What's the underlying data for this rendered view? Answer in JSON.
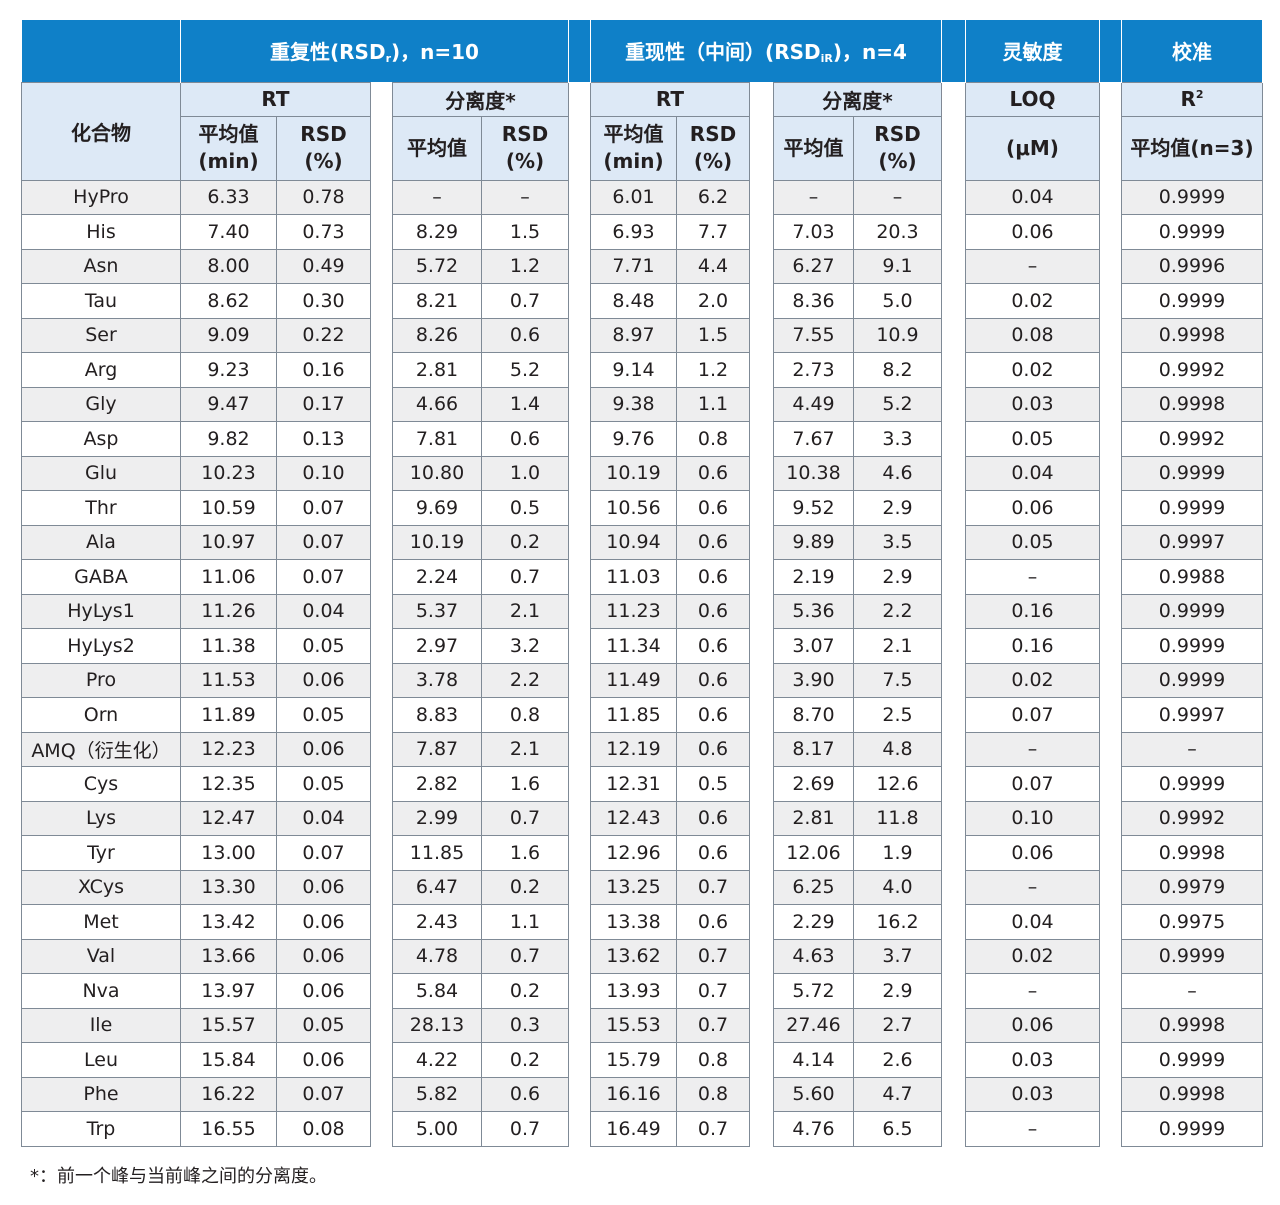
{
  "header": {
    "repeat": "重复性(RSDr)，n=10",
    "repeat_main": "重复性(RSD",
    "repeat_sub": "r",
    "repeat_tail": ")，n=10",
    "reprod_main": "重现性（中间）(RSD",
    "reprod_sub": "iR",
    "reprod_tail": ")，n=4",
    "sensitivity": "灵敏度",
    "calibration": "校准",
    "compound": "化合物",
    "rt": "RT",
    "resolution": "分离度*",
    "loq": "LOQ",
    "r2_main": "R",
    "r2_sup": "2",
    "mean_min_1": "平均值",
    "mean_min_2": "(min)",
    "rsd_1": "RSD",
    "rsd_2": "(%)",
    "mean": "平均值",
    "loq_unit": "(μM)",
    "mean_n3": "平均值(n=3)"
  },
  "rows": [
    [
      "HyPro",
      "6.33",
      "0.78",
      "–",
      "–",
      "6.01",
      "6.2",
      "–",
      "–",
      "0.04",
      "0.9999"
    ],
    [
      "His",
      "7.40",
      "0.73",
      "8.29",
      "1.5",
      "6.93",
      "7.7",
      "7.03",
      "20.3",
      "0.06",
      "0.9999"
    ],
    [
      "Asn",
      "8.00",
      "0.49",
      "5.72",
      "1.2",
      "7.71",
      "4.4",
      "6.27",
      "9.1",
      "–",
      "0.9996"
    ],
    [
      "Tau",
      "8.62",
      "0.30",
      "8.21",
      "0.7",
      "8.48",
      "2.0",
      "8.36",
      "5.0",
      "0.02",
      "0.9999"
    ],
    [
      "Ser",
      "9.09",
      "0.22",
      "8.26",
      "0.6",
      "8.97",
      "1.5",
      "7.55",
      "10.9",
      "0.08",
      "0.9998"
    ],
    [
      "Arg",
      "9.23",
      "0.16",
      "2.81",
      "5.2",
      "9.14",
      "1.2",
      "2.73",
      "8.2",
      "0.02",
      "0.9992"
    ],
    [
      "Gly",
      "9.47",
      "0.17",
      "4.66",
      "1.4",
      "9.38",
      "1.1",
      "4.49",
      "5.2",
      "0.03",
      "0.9998"
    ],
    [
      "Asp",
      "9.82",
      "0.13",
      "7.81",
      "0.6",
      "9.76",
      "0.8",
      "7.67",
      "3.3",
      "0.05",
      "0.9992"
    ],
    [
      "Glu",
      "10.23",
      "0.10",
      "10.80",
      "1.0",
      "10.19",
      "0.6",
      "10.38",
      "4.6",
      "0.04",
      "0.9999"
    ],
    [
      "Thr",
      "10.59",
      "0.07",
      "9.69",
      "0.5",
      "10.56",
      "0.6",
      "9.52",
      "2.9",
      "0.06",
      "0.9999"
    ],
    [
      "Ala",
      "10.97",
      "0.07",
      "10.19",
      "0.2",
      "10.94",
      "0.6",
      "9.89",
      "3.5",
      "0.05",
      "0.9997"
    ],
    [
      "GABA",
      "11.06",
      "0.07",
      "2.24",
      "0.7",
      "11.03",
      "0.6",
      "2.19",
      "2.9",
      "–",
      "0.9988"
    ],
    [
      "HyLys1",
      "11.26",
      "0.04",
      "5.37",
      "2.1",
      "11.23",
      "0.6",
      "5.36",
      "2.2",
      "0.16",
      "0.9999"
    ],
    [
      "HyLys2",
      "11.38",
      "0.05",
      "2.97",
      "3.2",
      "11.34",
      "0.6",
      "3.07",
      "2.1",
      "0.16",
      "0.9999"
    ],
    [
      "Pro",
      "11.53",
      "0.06",
      "3.78",
      "2.2",
      "11.49",
      "0.6",
      "3.90",
      "7.5",
      "0.02",
      "0.9999"
    ],
    [
      "Orn",
      "11.89",
      "0.05",
      "8.83",
      "0.8",
      "11.85",
      "0.6",
      "8.70",
      "2.5",
      "0.07",
      "0.9997"
    ],
    [
      "AMQ（衍生化）",
      "12.23",
      "0.06",
      "7.87",
      "2.1",
      "12.19",
      "0.6",
      "8.17",
      "4.8",
      "–",
      "–"
    ],
    [
      "Cys",
      "12.35",
      "0.05",
      "2.82",
      "1.6",
      "12.31",
      "0.5",
      "2.69",
      "12.6",
      "0.07",
      "0.9999"
    ],
    [
      "Lys",
      "12.47",
      "0.04",
      "2.99",
      "0.7",
      "12.43",
      "0.6",
      "2.81",
      "11.8",
      "0.10",
      "0.9992"
    ],
    [
      "Tyr",
      "13.00",
      "0.07",
      "11.85",
      "1.6",
      "12.96",
      "0.6",
      "12.06",
      "1.9",
      "0.06",
      "0.9998"
    ],
    [
      "XCys",
      "13.30",
      "0.06",
      "6.47",
      "0.2",
      "13.25",
      "0.7",
      "6.25",
      "4.0",
      "–",
      "0.9979"
    ],
    [
      "Met",
      "13.42",
      "0.06",
      "2.43",
      "1.1",
      "13.38",
      "0.6",
      "2.29",
      "16.2",
      "0.04",
      "0.9975"
    ],
    [
      "Val",
      "13.66",
      "0.06",
      "4.78",
      "0.7",
      "13.62",
      "0.7",
      "4.63",
      "3.7",
      "0.02",
      "0.9999"
    ],
    [
      "Nva",
      "13.97",
      "0.06",
      "5.84",
      "0.2",
      "13.93",
      "0.7",
      "5.72",
      "2.9",
      "–",
      "–"
    ],
    [
      "Ile",
      "15.57",
      "0.05",
      "28.13",
      "0.3",
      "15.53",
      "0.7",
      "27.46",
      "2.7",
      "0.06",
      "0.9998"
    ],
    [
      "Leu",
      "15.84",
      "0.06",
      "4.22",
      "0.2",
      "15.79",
      "0.8",
      "4.14",
      "2.6",
      "0.03",
      "0.9999"
    ],
    [
      "Phe",
      "16.22",
      "0.07",
      "5.82",
      "0.6",
      "16.16",
      "0.8",
      "5.60",
      "4.7",
      "0.03",
      "0.9998"
    ],
    [
      "Trp",
      "16.55",
      "0.08",
      "5.00",
      "0.7",
      "16.49",
      "0.7",
      "4.76",
      "6.5",
      "–",
      "0.9999"
    ]
  ],
  "footnote": "*：前一个峰与当前峰之间的分离度。"
}
